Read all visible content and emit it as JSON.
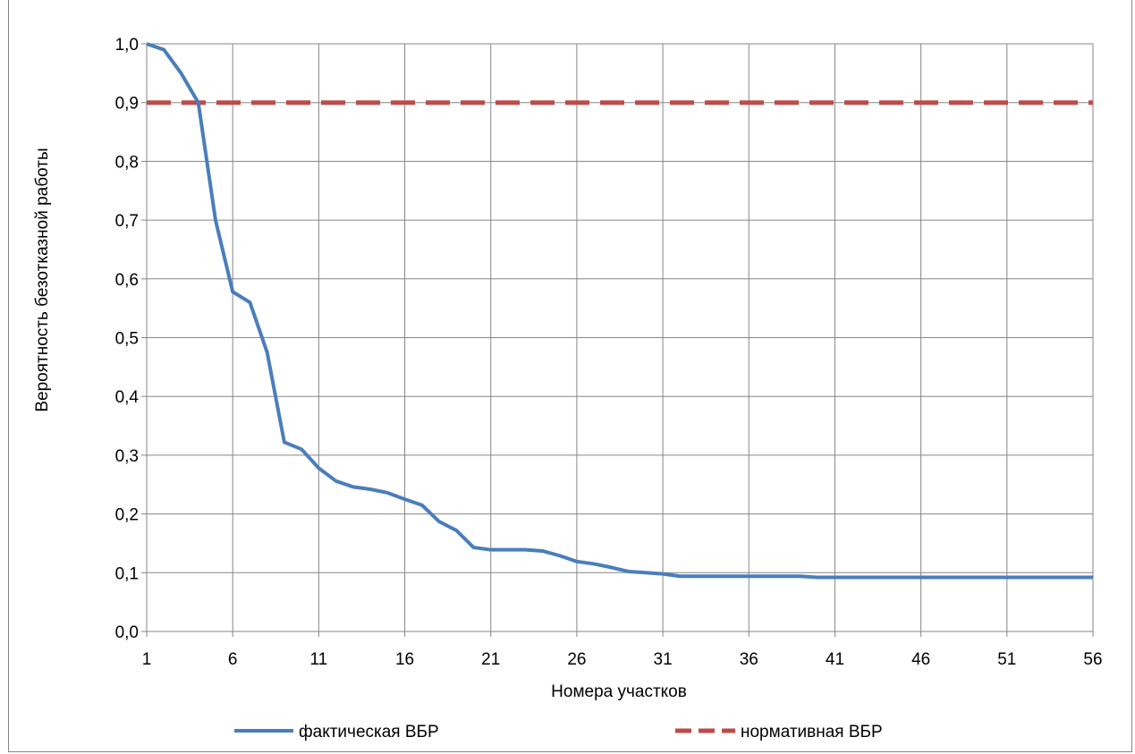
{
  "chart_data": {
    "type": "line",
    "title": "",
    "xlabel": "Номера участков",
    "ylabel": "Вероятность безотказной работы",
    "xlim": [
      1,
      56
    ],
    "ylim": [
      0.0,
      1.0
    ],
    "x_ticks": [
      "1",
      "6",
      "11",
      "16",
      "21",
      "26",
      "31",
      "36",
      "41",
      "46",
      "51",
      "56"
    ],
    "y_ticks": [
      "0,0",
      "0,1",
      "0,2",
      "0,3",
      "0,4",
      "0,5",
      "0,6",
      "0,7",
      "0,8",
      "0,9",
      "1,0"
    ],
    "grid": true,
    "legend_position": "bottom",
    "series": [
      {
        "name": "фактическая ВБР",
        "color": "#4a7ebb",
        "style": "solid",
        "x": [
          1,
          2,
          3,
          4,
          5,
          6,
          7,
          8,
          9,
          10,
          11,
          12,
          13,
          14,
          15,
          16,
          17,
          18,
          19,
          20,
          21,
          22,
          23,
          24,
          25,
          26,
          27,
          28,
          29,
          30,
          31,
          32,
          33,
          34,
          35,
          36,
          37,
          38,
          39,
          40,
          41,
          42,
          43,
          44,
          45,
          46,
          47,
          48,
          49,
          50,
          51,
          52,
          53,
          54,
          55,
          56
        ],
        "values": [
          1.0,
          0.99,
          0.95,
          0.9,
          0.7,
          0.578,
          0.56,
          0.475,
          0.322,
          0.31,
          0.278,
          0.256,
          0.246,
          0.242,
          0.236,
          0.225,
          0.215,
          0.187,
          0.172,
          0.143,
          0.139,
          0.139,
          0.139,
          0.137,
          0.129,
          0.119,
          0.115,
          0.109,
          0.102,
          0.1,
          0.098,
          0.094,
          0.094,
          0.094,
          0.094,
          0.094,
          0.094,
          0.094,
          0.094,
          0.092,
          0.092,
          0.092,
          0.092,
          0.092,
          0.092,
          0.092,
          0.092,
          0.092,
          0.092,
          0.092,
          0.092,
          0.092,
          0.092,
          0.092,
          0.092,
          0.092
        ]
      },
      {
        "name": "нормативная ВБР",
        "color": "#be4b48",
        "style": "dashed",
        "x": [
          1,
          56
        ],
        "values": [
          0.9,
          0.9
        ]
      }
    ]
  }
}
